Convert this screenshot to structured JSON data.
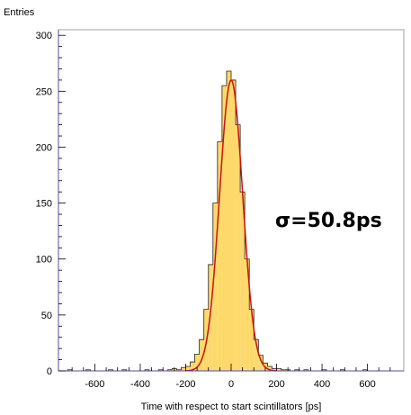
{
  "chart_data": {
    "type": "histogram",
    "title": "",
    "xlabel": "Time with respect to start scintillators [ps]",
    "ylabel": "Entries",
    "xlim": [
      -760,
      760
    ],
    "ylim": [
      0,
      305
    ],
    "x_ticks": [
      -600,
      -400,
      -200,
      0,
      200,
      400,
      600
    ],
    "y_ticks": [
      0,
      50,
      100,
      150,
      200,
      250,
      300
    ],
    "bin_width": 20,
    "bins_x_low": [
      -760,
      -740,
      -720,
      -700,
      -680,
      -660,
      -640,
      -620,
      -600,
      -580,
      -560,
      -540,
      -520,
      -500,
      -480,
      -460,
      -440,
      -420,
      -400,
      -380,
      -360,
      -340,
      -320,
      -300,
      -280,
      -260,
      -240,
      -220,
      -200,
      -180,
      -160,
      -140,
      -120,
      -100,
      -80,
      -60,
      -40,
      -20,
      0,
      20,
      40,
      60,
      80,
      100,
      120,
      140,
      160,
      180,
      200,
      220,
      240,
      260,
      280,
      300,
      320,
      340,
      360,
      380,
      400,
      420,
      440,
      460,
      480,
      500,
      520,
      540,
      560,
      580,
      600,
      620,
      640,
      660,
      680,
      700,
      720,
      740
    ],
    "counts": [
      0,
      0,
      1,
      0,
      0,
      0,
      1,
      0,
      0,
      0,
      0,
      1,
      0,
      0,
      1,
      0,
      0,
      0,
      0,
      1,
      0,
      0,
      1,
      0,
      1,
      2,
      1,
      3,
      4,
      8,
      15,
      28,
      55,
      95,
      150,
      205,
      255,
      268,
      260,
      220,
      160,
      100,
      55,
      28,
      14,
      7,
      4,
      2,
      2,
      1,
      1,
      0,
      1,
      0,
      1,
      0,
      0,
      0,
      1,
      0,
      0,
      0,
      1,
      0,
      0,
      0,
      0,
      1,
      0,
      0,
      0,
      0,
      0,
      0,
      0,
      0
    ],
    "fit": {
      "type": "gaussian",
      "mean": 0,
      "sigma": 50.8,
      "amplitude": 260
    },
    "annotation": "σ=50.8ps",
    "colors": {
      "fill": "#fdd96b",
      "outline": "#222222",
      "fit": "#cc1111",
      "axis": "#5a4c9c"
    }
  }
}
